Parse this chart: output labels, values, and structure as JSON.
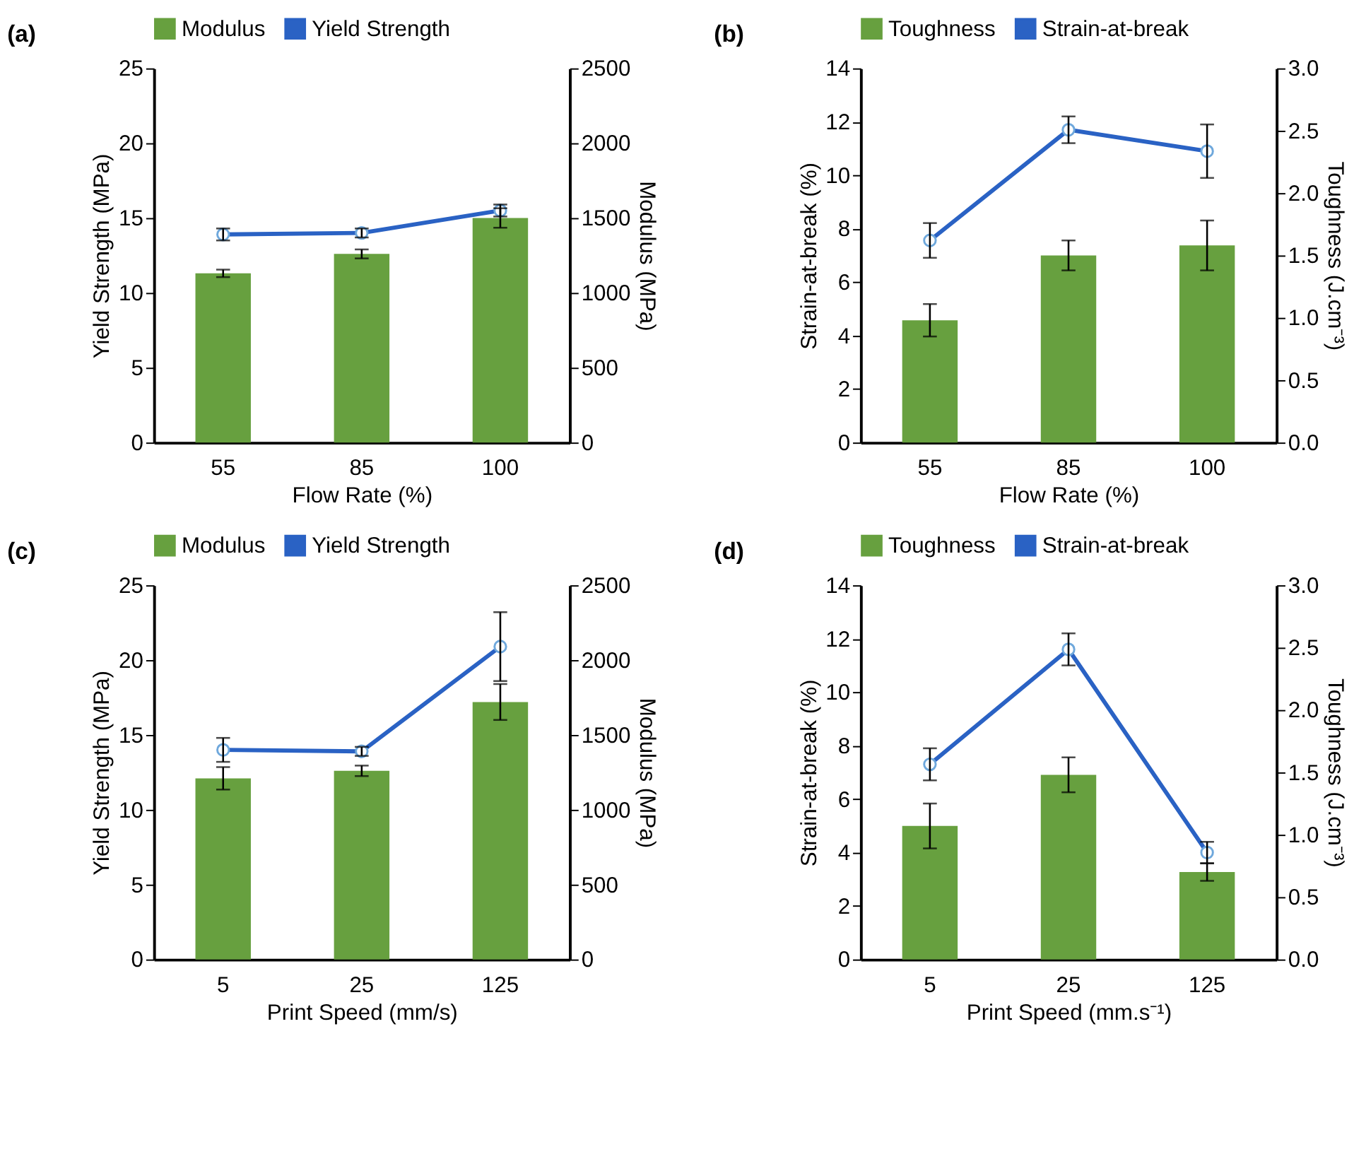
{
  "chart_data": [
    {
      "type": "bar",
      "title": "(a)",
      "xlabel": "Flow Rate (%)",
      "ylabel": "Yield Strength (MPa)",
      "y2label": "Modulus (MPa)",
      "categories": [
        "55",
        "85",
        "100"
      ],
      "ylim": [
        0,
        25
      ],
      "yticks": [
        0,
        5,
        10,
        15,
        20,
        25
      ],
      "y2lim": [
        0,
        2500
      ],
      "y2ticks": [
        0,
        500,
        1000,
        1500,
        2000,
        2500
      ],
      "legend": "top",
      "series": [
        {
          "name": "Modulus",
          "axis": "y2",
          "color": "#67a03f",
          "values": [
            1130,
            1260,
            1500
          ],
          "errors": [
            25,
            30,
            65
          ]
        },
        {
          "name": "Yield Strength",
          "type": "line",
          "axis": "y",
          "color": "#2a62c4",
          "marker": "circle",
          "values": [
            13.9,
            14.0,
            15.5
          ],
          "errors": [
            0.4,
            0.3,
            0.4
          ]
        }
      ]
    },
    {
      "type": "bar",
      "title": "(b)",
      "xlabel": "Flow Rate (%)",
      "ylabel": "Strain-at-break (%)",
      "y2label": "Toughness (J.cm⁻³)",
      "categories": [
        "55",
        "85",
        "100"
      ],
      "ylim": [
        0,
        14
      ],
      "yticks": [
        0,
        2,
        4,
        6,
        8,
        10,
        12,
        14
      ],
      "y2lim": [
        0,
        3
      ],
      "y2ticks": [
        {
          "value": 0,
          "label": "0.0"
        },
        0.5,
        {
          "value": 1,
          "label": "1.0"
        },
        1.5,
        {
          "value": 2,
          "label": "2.0"
        },
        2.5,
        {
          "value": 3,
          "label": "3.0"
        }
      ],
      "legend": "top",
      "series": [
        {
          "name": "Toughness",
          "axis": "y2",
          "color": "#67a03f",
          "values": [
            0.98,
            1.5,
            1.58
          ],
          "errors": [
            0.13,
            0.12,
            0.2
          ]
        },
        {
          "name": "Strain-at-break",
          "type": "line",
          "axis": "y",
          "color": "#2a62c4",
          "marker": "circle",
          "values": [
            7.56,
            11.7,
            10.9
          ],
          "errors": [
            0.65,
            0.5,
            1.0
          ]
        }
      ]
    },
    {
      "type": "bar",
      "title": "(c)",
      "xlabel": "Print Speed (mm/s)",
      "ylabel": "Yield Strength (MPa)",
      "y2label": "Modulus (MPa)",
      "categories": [
        "5",
        "25",
        "125"
      ],
      "ylim": [
        0,
        25
      ],
      "yticks": [
        0,
        5,
        10,
        15,
        20,
        25
      ],
      "y2lim": [
        0,
        2500
      ],
      "y2ticks": [
        0,
        500,
        1000,
        1500,
        2000,
        2500
      ],
      "legend": "top",
      "series": [
        {
          "name": "Modulus",
          "axis": "y2",
          "color": "#67a03f",
          "values": [
            1210,
            1260,
            1720
          ],
          "errors": [
            75,
            35,
            120
          ]
        },
        {
          "name": "Yield Strength",
          "type": "line",
          "axis": "y",
          "color": "#2a62c4",
          "marker": "circle",
          "values": [
            14.0,
            13.9,
            20.9
          ],
          "errors": [
            0.8,
            0.3,
            2.3
          ]
        }
      ]
    },
    {
      "type": "bar",
      "title": "(d)",
      "xlabel": "Print Speed (mm.s⁻¹)",
      "ylabel": "Strain-at-break (%)",
      "y2label": "Toughness (J.cm⁻³)",
      "categories": [
        "5",
        "25",
        "125"
      ],
      "ylim": [
        0,
        14
      ],
      "yticks": [
        0,
        2,
        4,
        6,
        8,
        10,
        12,
        14
      ],
      "y2lim": [
        0,
        3
      ],
      "y2ticks": [
        {
          "value": 0,
          "label": "0.0"
        },
        0.5,
        {
          "value": 1,
          "label": "1.0"
        },
        1.5,
        {
          "value": 2,
          "label": "2.0"
        },
        2.5,
        {
          "value": 3,
          "label": "3.0"
        }
      ],
      "legend": "top",
      "series": [
        {
          "name": "Toughness",
          "axis": "y2",
          "color": "#67a03f",
          "values": [
            1.07,
            1.48,
            0.7
          ],
          "errors": [
            0.18,
            0.14,
            0.07
          ]
        },
        {
          "name": "Strain-at-break",
          "type": "line",
          "axis": "y",
          "color": "#2a62c4",
          "marker": "circle",
          "values": [
            7.3,
            11.6,
            4.0
          ],
          "errors": [
            0.6,
            0.6,
            0.4
          ]
        }
      ]
    }
  ]
}
